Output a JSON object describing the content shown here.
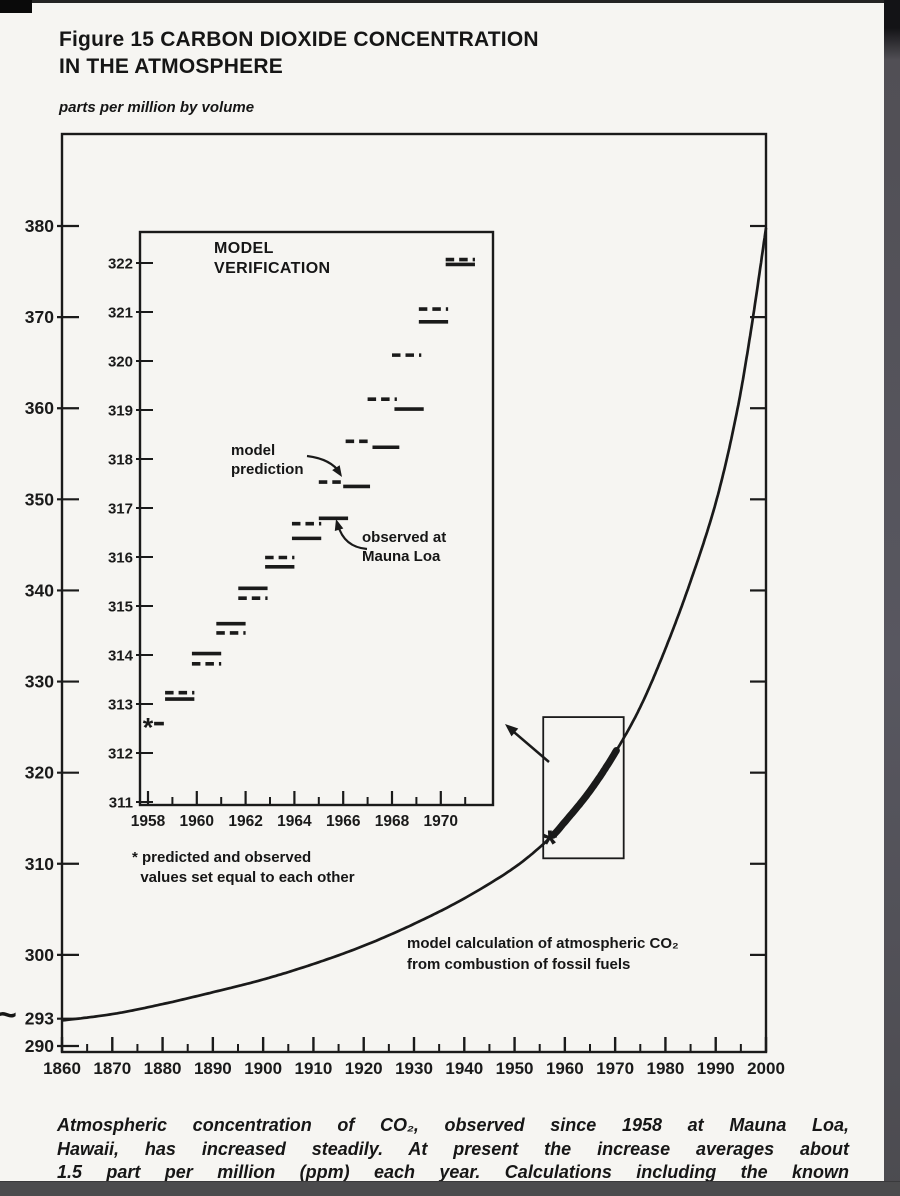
{
  "page": {
    "title": "Figure 15 CARBON DIOXIDE CONCENTRATION\nIN THE ATMOSPHERE",
    "units_label": "parts per million by volume",
    "break_mark": "~",
    "caption_lines": [
      "Atmospheric concentration of CO₂, observed since 1958 at Mauna Loa,",
      "Hawaii, has increased steadily. At present the increase averages about",
      "1.5 part per million (ppm) each year. Calculations including the known"
    ]
  },
  "annotations": {
    "model_calc": "model calculation of atmospheric CO₂\nfrom combustion of fossil fuels",
    "inset_title": "MODEL\nVERIFICATION",
    "model_prediction": "model\nprediction",
    "observed": "observed at\nMauna Loa",
    "footnote": "* predicted and observed\n  values set equal to each other",
    "asterisk_glyph": "*"
  },
  "colors": {
    "ink": "#1a1a1a",
    "paper": "#f6f5f2"
  },
  "chart_data": [
    {
      "type": "line",
      "title": "Carbon dioxide concentration in the atmosphere",
      "ylabel": "parts per million by volume",
      "xlabel": "",
      "grid": false,
      "xlim": [
        1860,
        2000
      ],
      "ylim": [
        289.2,
        390.1
      ],
      "x_ticks": [
        1860,
        1870,
        1880,
        1890,
        1900,
        1910,
        1920,
        1930,
        1940,
        1950,
        1960,
        1970,
        1980,
        1990,
        2000
      ],
      "x_minor_step": 5,
      "y_ticks": [
        380,
        370,
        360,
        350,
        340,
        330,
        320,
        310,
        300,
        293,
        290
      ],
      "y_right_ticks": [
        380,
        370,
        360,
        350,
        340,
        330,
        320,
        310,
        300
      ],
      "series": [
        {
          "name": "model calculation of atmospheric CO₂ from combustion of fossil fuels",
          "points": [
            [
              1860,
              292.8
            ],
            [
              1870,
              293.5
            ],
            [
              1880,
              294.6
            ],
            [
              1890,
              295.9
            ],
            [
              1900,
              297.3
            ],
            [
              1910,
              299.0
            ],
            [
              1920,
              301.0
            ],
            [
              1930,
              303.4
            ],
            [
              1940,
              306.2
            ],
            [
              1950,
              309.6
            ],
            [
              1957,
              312.8
            ],
            [
              1960,
              314.6
            ],
            [
              1965,
              318.0
            ],
            [
              1970,
              322.2
            ],
            [
              1975,
              327.2
            ],
            [
              1980,
              333.6
            ],
            [
              1985,
              341.0
            ],
            [
              1990,
              349.6
            ],
            [
              1994,
              359.0
            ],
            [
              1997,
              368.5
            ],
            [
              2000,
              379.8
            ]
          ]
        }
      ],
      "bold_segment_years": [
        1957.6,
        1970.4
      ],
      "asterisk_point": [
        1957,
        312.8
      ],
      "inset_link_box": {
        "x": [
          1955.7,
          1971.7
        ],
        "v": [
          310.6,
          326.1
        ]
      }
    },
    {
      "type": "line",
      "title": "MODEL VERIFICATION",
      "grid": false,
      "xlim": [
        1957.67,
        1972.15
      ],
      "ylim": [
        310.94,
        322.63
      ],
      "x_ticks": [
        1958,
        1960,
        1962,
        1964,
        1966,
        1968,
        1970
      ],
      "x_minor_ticks": [
        1959,
        1961,
        1963,
        1965,
        1967,
        1969,
        1971
      ],
      "y_ticks": [
        311,
        312,
        313,
        314,
        315,
        316,
        317,
        318,
        319,
        320,
        321,
        322
      ],
      "legend": {
        "dashed": "model prediction",
        "solid": "observed at Mauna Loa"
      },
      "footnote": "* predicted and observed values set equal to each other",
      "asterisk_point": [
        1958.0,
        312.6
      ],
      "segments": [
        {
          "x": [
            1958.25,
            1958.65
          ],
          "v": 312.6,
          "style": "solid"
        },
        {
          "x": [
            1958.7,
            1959.9
          ],
          "v": 313.23,
          "style": "dashed"
        },
        {
          "x": [
            1958.7,
            1959.9
          ],
          "v": 313.1,
          "style": "solid"
        },
        {
          "x": [
            1959.8,
            1961.0
          ],
          "v": 314.03,
          "style": "solid"
        },
        {
          "x": [
            1959.8,
            1961.0
          ],
          "v": 313.82,
          "style": "dashed"
        },
        {
          "x": [
            1960.8,
            1962.0
          ],
          "v": 314.64,
          "style": "solid"
        },
        {
          "x": [
            1960.8,
            1962.0
          ],
          "v": 314.45,
          "style": "dashed"
        },
        {
          "x": [
            1961.7,
            1962.9
          ],
          "v": 315.36,
          "style": "solid"
        },
        {
          "x": [
            1961.7,
            1962.9
          ],
          "v": 315.16,
          "style": "dashed"
        },
        {
          "x": [
            1962.8,
            1964.0
          ],
          "v": 315.99,
          "style": "dashed"
        },
        {
          "x": [
            1962.8,
            1964.0
          ],
          "v": 315.8,
          "style": "solid"
        },
        {
          "x": [
            1963.9,
            1965.1
          ],
          "v": 316.68,
          "style": "dashed"
        },
        {
          "x": [
            1963.9,
            1965.1
          ],
          "v": 316.38,
          "style": "solid"
        },
        {
          "x": [
            1965.0,
            1966.0
          ],
          "v": 317.53,
          "style": "dashed"
        },
        {
          "x": [
            1965.0,
            1966.2
          ],
          "v": 316.79,
          "style": "solid"
        },
        {
          "x": [
            1966.1,
            1967.2
          ],
          "v": 318.36,
          "style": "dashed"
        },
        {
          "x": [
            1966.0,
            1967.1
          ],
          "v": 317.44,
          "style": "solid"
        },
        {
          "x": [
            1967.0,
            1968.2
          ],
          "v": 319.22,
          "style": "dashed"
        },
        {
          "x": [
            1967.2,
            1968.3
          ],
          "v": 318.24,
          "style": "solid"
        },
        {
          "x": [
            1968.0,
            1969.2
          ],
          "v": 320.12,
          "style": "dashed"
        },
        {
          "x": [
            1968.1,
            1969.3
          ],
          "v": 319.02,
          "style": "solid"
        },
        {
          "x": [
            1969.1,
            1970.3
          ],
          "v": 321.06,
          "style": "dashed"
        },
        {
          "x": [
            1969.1,
            1970.3
          ],
          "v": 320.8,
          "style": "solid"
        },
        {
          "x": [
            1970.2,
            1971.4
          ],
          "v": 322.07,
          "style": "dashed"
        },
        {
          "x": [
            1970.2,
            1971.4
          ],
          "v": 321.97,
          "style": "solid"
        }
      ]
    }
  ]
}
